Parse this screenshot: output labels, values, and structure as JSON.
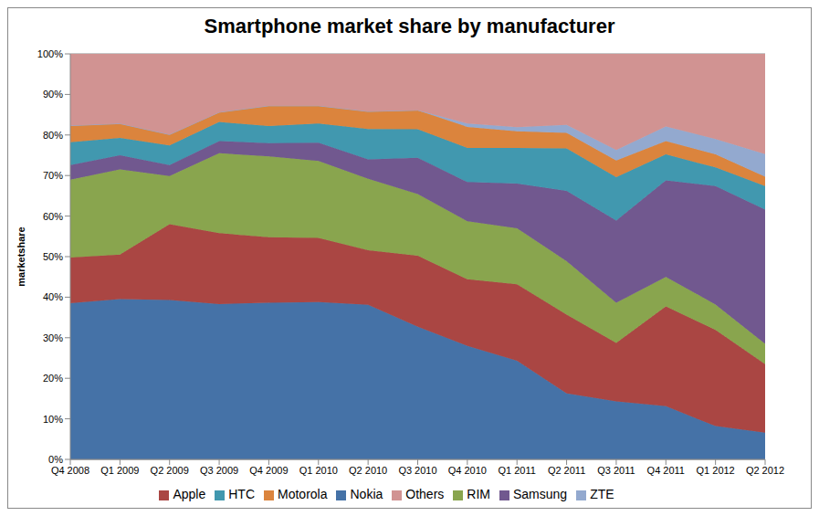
{
  "chart_data": {
    "type": "area",
    "title": "Smartphone market share by manufacturer",
    "y_label": "marketshare",
    "stacked": true,
    "grid": true,
    "legend": "bottom",
    "categories": [
      "Q4 2008",
      "Q1 2009",
      "Q2 2009",
      "Q3 2009",
      "Q4 2009",
      "Q1 2010",
      "Q2 2010",
      "Q3 2010",
      "Q4 2010",
      "Q1 2011",
      "Q2 2011",
      "Q3 2011",
      "Q4 2011",
      "Q1 2012",
      "Q2 2012"
    ],
    "ylim": [
      0,
      100
    ],
    "yticks": [
      {
        "value": 0,
        "label": "0%"
      },
      {
        "value": 10,
        "label": "10%"
      },
      {
        "value": 20,
        "label": "20%"
      },
      {
        "value": 30,
        "label": "30%"
      },
      {
        "value": 40,
        "label": "40%"
      },
      {
        "value": 50,
        "label": "50%"
      },
      {
        "value": 60,
        "label": "60%"
      },
      {
        "value": 70,
        "label": "70%"
      },
      {
        "value": 80,
        "label": "80%"
      },
      {
        "value": 90,
        "label": "90%"
      },
      {
        "value": 100,
        "label": "100%"
      }
    ],
    "series": [
      {
        "name": "Nokia",
        "color": "#4572A7",
        "values": [
          38.5,
          39.5,
          39.3,
          38.3,
          38.6,
          38.8,
          38.1,
          32.7,
          28.0,
          24.3,
          16.3,
          14.3,
          13.1,
          8.2,
          6.6
        ]
      },
      {
        "name": "Apple",
        "color": "#AA4643",
        "values": [
          11.3,
          11.0,
          18.7,
          17.5,
          16.2,
          15.8,
          13.5,
          17.5,
          16.4,
          18.9,
          19.4,
          14.4,
          24.6,
          23.7,
          16.9
        ]
      },
      {
        "name": "RIM",
        "color": "#89A54E",
        "values": [
          19.2,
          21.0,
          11.9,
          19.7,
          19.9,
          19.0,
          17.6,
          15.2,
          14.3,
          13.8,
          13.2,
          9.9,
          7.3,
          6.3,
          5.0
        ]
      },
      {
        "name": "Samsung",
        "color": "#71588F",
        "values": [
          3.6,
          3.5,
          2.7,
          3.0,
          3.3,
          4.5,
          4.8,
          9.0,
          9.7,
          11.0,
          17.3,
          20.3,
          23.8,
          29.2,
          33.1
        ]
      },
      {
        "name": "HTC",
        "color": "#4198AF",
        "values": [
          5.6,
          4.3,
          4.8,
          4.7,
          4.2,
          4.7,
          7.5,
          7.0,
          8.4,
          8.8,
          10.5,
          10.7,
          6.4,
          4.6,
          5.8
        ]
      },
      {
        "name": "Motorola",
        "color": "#DB843D",
        "values": [
          4.1,
          3.5,
          2.7,
          2.4,
          5.0,
          4.4,
          4.3,
          4.7,
          5.2,
          4.1,
          3.8,
          4.1,
          3.3,
          3.2,
          2.3
        ]
      },
      {
        "name": "ZTE",
        "color": "#93A9CF",
        "values": [
          0,
          0,
          0,
          0,
          0,
          0,
          0,
          0,
          0.8,
          1.0,
          2.0,
          2.6,
          3.6,
          3.8,
          5.6
        ]
      },
      {
        "name": "Others",
        "color": "#D19392",
        "values": [
          17.7,
          17.2,
          19.9,
          14.4,
          12.8,
          12.8,
          14.2,
          13.9,
          17.2,
          18.1,
          17.5,
          23.7,
          17.9,
          21.0,
          24.7
        ]
      }
    ]
  }
}
